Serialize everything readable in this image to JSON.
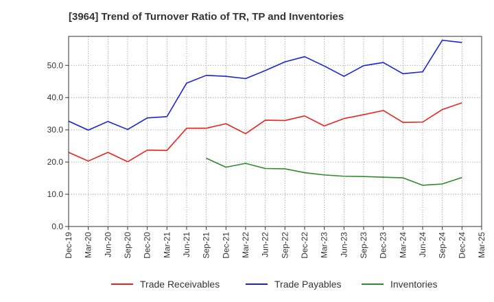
{
  "chart_data": {
    "type": "line",
    "title": "[3964]  Trend of Turnover Ratio of TR, TP and Inventories",
    "xlabel": "",
    "ylabel": "",
    "categories": [
      "Dec-19",
      "Mar-20",
      "Jun-20",
      "Sep-20",
      "Dec-20",
      "Mar-21",
      "Jun-21",
      "Sep-21",
      "Dec-21",
      "Mar-22",
      "Jun-22",
      "Sep-22",
      "Dec-22",
      "Mar-23",
      "Jun-23",
      "Sep-23",
      "Dec-23",
      "Mar-24",
      "Jun-24",
      "Sep-24",
      "Dec-24",
      "Mar-25"
    ],
    "ylim": [
      0,
      59
    ],
    "yticks": [
      0.0,
      10.0,
      20.0,
      30.0,
      40.0,
      50.0
    ],
    "ytick_labels": [
      "0.0",
      "10.0",
      "20.0",
      "30.0",
      "40.0",
      "50.0"
    ],
    "grid": true,
    "legend_position": "bottom",
    "series": [
      {
        "name": "Trade Receivables",
        "color": "#e8231f",
        "values": [
          23.0,
          20.3,
          23.0,
          20.1,
          23.7,
          23.6,
          30.5,
          30.5,
          31.9,
          28.8,
          33.0,
          32.9,
          34.3,
          31.2,
          33.5,
          34.7,
          36.0,
          32.3,
          32.4,
          36.3,
          38.4,
          null
        ]
      },
      {
        "name": "Trade Payables",
        "color": "#1522d6",
        "values": [
          32.7,
          29.9,
          32.6,
          30.1,
          33.7,
          34.1,
          44.5,
          46.9,
          46.6,
          45.9,
          48.4,
          51.1,
          52.7,
          49.8,
          46.6,
          49.9,
          50.9,
          47.4,
          48.0,
          57.8,
          57.1,
          null
        ]
      },
      {
        "name": "Inventories",
        "color": "#2d8a2d",
        "values": [
          null,
          null,
          null,
          null,
          null,
          null,
          null,
          21.2,
          18.4,
          19.6,
          18.0,
          17.9,
          16.7,
          16.0,
          15.6,
          15.5,
          15.3,
          15.1,
          12.8,
          13.2,
          15.2,
          null
        ]
      }
    ]
  }
}
